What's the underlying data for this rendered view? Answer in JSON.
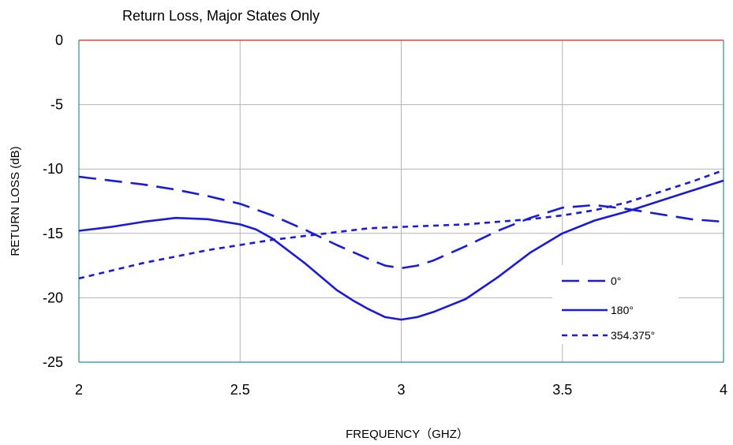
{
  "chart_data": {
    "type": "line",
    "title": "Return Loss, Major States Only",
    "xlabel": "FREQUENCY（GHZ）",
    "ylabel": "RETURN LOSS (dB)",
    "xlim": [
      2,
      4
    ],
    "ylim": [
      -25,
      0
    ],
    "xticks": [
      2,
      2.5,
      3,
      3.5,
      4
    ],
    "xtick_labels": [
      "2",
      "2.5",
      "3",
      "3.5",
      "4"
    ],
    "yticks": [
      0,
      -5,
      -10,
      -15,
      -20,
      -25
    ],
    "ytick_labels": [
      "0",
      "-5",
      "-10",
      "-15",
      "-20",
      "-25"
    ],
    "grid": true,
    "legend": "right",
    "series": [
      {
        "name": "0°",
        "style": "dashed",
        "color": "#1a1adc",
        "x": [
          2.0,
          2.1,
          2.2,
          2.3,
          2.4,
          2.5,
          2.6,
          2.7,
          2.8,
          2.9,
          2.95,
          3.0,
          3.05,
          3.1,
          3.2,
          3.3,
          3.4,
          3.5,
          3.6,
          3.7,
          3.8,
          3.9,
          4.0
        ],
        "y": [
          -10.6,
          -10.9,
          -11.2,
          -11.6,
          -12.1,
          -12.7,
          -13.6,
          -14.7,
          -15.9,
          -17.0,
          -17.5,
          -17.7,
          -17.5,
          -17.1,
          -16.0,
          -14.8,
          -13.8,
          -13.0,
          -12.8,
          -13.1,
          -13.5,
          -13.9,
          -14.1
        ]
      },
      {
        "name": "180°",
        "style": "solid",
        "color": "#1a1adc",
        "x": [
          2.0,
          2.1,
          2.2,
          2.3,
          2.4,
          2.5,
          2.55,
          2.6,
          2.7,
          2.8,
          2.85,
          2.9,
          2.95,
          3.0,
          3.05,
          3.1,
          3.2,
          3.3,
          3.4,
          3.5,
          3.6,
          3.7,
          3.8,
          3.9,
          4.0
        ],
        "y": [
          -14.8,
          -14.5,
          -14.1,
          -13.8,
          -13.9,
          -14.3,
          -14.7,
          -15.4,
          -17.3,
          -19.4,
          -20.2,
          -20.9,
          -21.5,
          -21.7,
          -21.5,
          -21.1,
          -20.1,
          -18.4,
          -16.5,
          -15.0,
          -14.0,
          -13.3,
          -12.5,
          -11.7,
          -10.9
        ]
      },
      {
        "name": "354.375°",
        "style": "dotted",
        "color": "#1a1adc",
        "x": [
          2.0,
          2.1,
          2.2,
          2.3,
          2.4,
          2.5,
          2.6,
          2.7,
          2.8,
          2.9,
          3.0,
          3.1,
          3.2,
          3.3,
          3.4,
          3.5,
          3.6,
          3.7,
          3.8,
          3.9,
          4.0
        ],
        "y": [
          -18.5,
          -17.9,
          -17.3,
          -16.8,
          -16.3,
          -15.9,
          -15.5,
          -15.2,
          -14.9,
          -14.6,
          -14.5,
          -14.4,
          -14.3,
          -14.1,
          -13.9,
          -13.6,
          -13.2,
          -12.6,
          -11.8,
          -11.0,
          -10.1
        ]
      }
    ]
  }
}
